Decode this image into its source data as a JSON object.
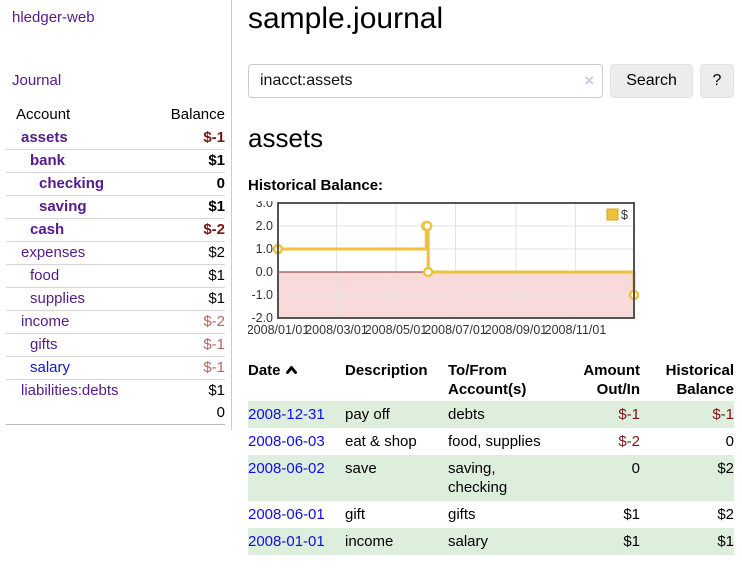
{
  "app": {
    "title": "hledger-web"
  },
  "sidebar": {
    "journal_link": "Journal",
    "accounts": {
      "col_account": "Account",
      "col_balance": "Balance",
      "rows": [
        {
          "name": "assets",
          "balance": "$-1",
          "depth": 1,
          "in_account": true,
          "visited": true
        },
        {
          "name": "bank",
          "balance": "$1",
          "depth": 2,
          "in_account": true,
          "visited": true
        },
        {
          "name": "checking",
          "balance": "0",
          "depth": 3,
          "in_account": true,
          "visited": true
        },
        {
          "name": "saving",
          "balance": "$1",
          "depth": 3,
          "in_account": true,
          "visited": true
        },
        {
          "name": "cash",
          "balance": "$-2",
          "depth": 2,
          "in_account": true,
          "visited": true
        },
        {
          "name": "expenses",
          "balance": "$2",
          "depth": 1,
          "in_account": false,
          "visited": true
        },
        {
          "name": "food",
          "balance": "$1",
          "depth": 2,
          "in_account": false,
          "visited": true
        },
        {
          "name": "supplies",
          "balance": "$1",
          "depth": 2,
          "in_account": false,
          "visited": true
        },
        {
          "name": "income",
          "balance": "$-2",
          "depth": 1,
          "in_account": false,
          "visited": true
        },
        {
          "name": "gifts",
          "balance": "$-1",
          "depth": 2,
          "in_account": false,
          "visited": true
        },
        {
          "name": "salary",
          "balance": "$-1",
          "depth": 2,
          "in_account": false,
          "visited": false
        },
        {
          "name": "liabilities:debts",
          "balance": "$1",
          "depth": 1,
          "in_account": false,
          "visited": true
        }
      ],
      "total": "0"
    }
  },
  "main": {
    "title": "sample.journal",
    "search": {
      "value": "inacct:assets",
      "clear_icon": "×",
      "search_button": "Search",
      "help_button": "?"
    },
    "account_heading": "assets",
    "chart_title": "Historical Balance:"
  },
  "chart_data": {
    "type": "line",
    "style": "steps",
    "title": "Historical Balance",
    "x_range": [
      "2008-01-01",
      "2008-12-31"
    ],
    "ylim": [
      -2,
      3
    ],
    "yticks": [
      "3.0",
      "2.0",
      "1.0",
      "0.0",
      "-1.0",
      "-2.0"
    ],
    "xticks": [
      {
        "label": "2008/01/01",
        "date": "2008-01-01"
      },
      {
        "label": "2008/03/01",
        "date": "2008-03-01"
      },
      {
        "label": "2008/05/01",
        "date": "2008-05-01"
      },
      {
        "label": "2008/07/01",
        "date": "2008-07-01"
      },
      {
        "label": "2008/09/01",
        "date": "2008-09-01"
      },
      {
        "label": "2008/11/01",
        "date": "2008-11-01"
      }
    ],
    "legend": [
      {
        "label": "$",
        "color": "#edc240"
      }
    ],
    "legend_position": "top-right",
    "grid": true,
    "series": [
      {
        "name": "$",
        "color": "#edc240",
        "points": [
          {
            "date": "2008-01-01",
            "value": 1
          },
          {
            "date": "2008-06-01",
            "value": 2
          },
          {
            "date": "2008-06-02",
            "value": 2
          },
          {
            "date": "2008-06-03",
            "value": 0
          },
          {
            "date": "2008-12-31",
            "value": -1
          }
        ]
      }
    ],
    "negative_region": {
      "from": -2,
      "to": 0,
      "color": "#f8dada"
    },
    "zero_line_color": "#8b2626",
    "border_color": "#545454",
    "grid_color": "#e3e3e3"
  },
  "register": {
    "headers": {
      "date": "Date",
      "description": "Description",
      "tofrom": "To/From Account(s)",
      "amount": "Amount Out/In",
      "balance": "Historical Balance"
    },
    "rows": [
      {
        "date": "2008-12-31",
        "description": "pay off",
        "tofrom": "debts",
        "amount": "$-1",
        "balance": "$-1"
      },
      {
        "date": "2008-06-03",
        "description": "eat & shop",
        "tofrom": "food, supplies",
        "amount": "$-2",
        "balance": "0"
      },
      {
        "date": "2008-06-02",
        "description": "save",
        "tofrom": "saving,\nchecking",
        "amount": "0",
        "balance": "$2"
      },
      {
        "date": "2008-06-01",
        "description": "gift",
        "tofrom": "gifts",
        "amount": "$1",
        "balance": "$2"
      },
      {
        "date": "2008-01-01",
        "description": "income",
        "tofrom": "salary",
        "amount": "$1",
        "balance": "$1"
      }
    ]
  },
  "colors": {
    "visited_link": "#551a8b",
    "unvisited_link": "#0e0ee8",
    "negative_strong": "#7c1414",
    "negative_soft": "#bd6363",
    "row_stripe_green": "#ddeedd",
    "chart_line": "#edc240",
    "negative_region_pink": "#f8dada"
  }
}
